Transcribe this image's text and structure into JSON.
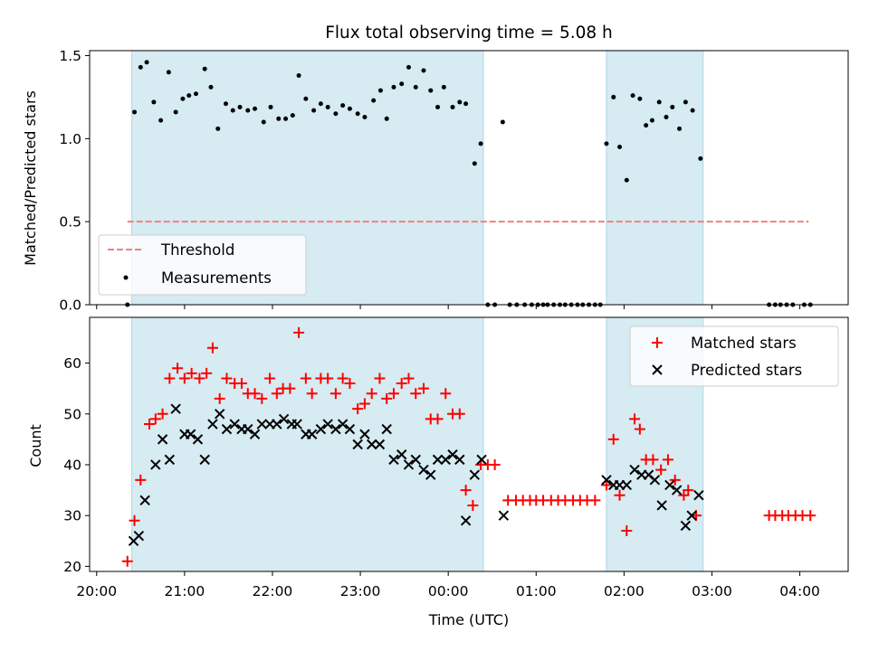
{
  "chart_data": [
    {
      "type": "scatter",
      "title": "Flux total observing time = 5.08 h",
      "ylabel": "Matched/Predicted stars",
      "xlabel": "",
      "xlim_hours": [
        19.92,
        28.55
      ],
      "ylim": [
        0,
        1.53
      ],
      "y_ticks": [
        0.0,
        0.5,
        1.0,
        1.5
      ],
      "x_ticks": [
        20,
        21,
        22,
        23,
        24,
        25,
        26,
        27,
        28
      ],
      "x_tick_labels": [],
      "shaded_intervals_hours": [
        [
          20.4,
          24.4
        ],
        [
          25.8,
          26.9
        ]
      ],
      "legend": {
        "placement": "lower-left",
        "entries": [
          "Threshold",
          "Measurements"
        ]
      },
      "threshold": {
        "name": "Threshold",
        "value": 0.5,
        "x_range_hours": [
          20.35,
          28.1
        ],
        "color": "#f08080"
      },
      "series": [
        {
          "name": "Measurements",
          "marker": "dot",
          "color": "#000000",
          "points": [
            [
              20.35,
              0.0
            ],
            [
              20.43,
              1.16
            ],
            [
              20.5,
              1.43
            ],
            [
              20.57,
              1.46
            ],
            [
              20.65,
              1.22
            ],
            [
              20.73,
              1.11
            ],
            [
              20.82,
              1.4
            ],
            [
              20.9,
              1.16
            ],
            [
              20.98,
              1.24
            ],
            [
              21.05,
              1.26
            ],
            [
              21.13,
              1.27
            ],
            [
              21.23,
              1.42
            ],
            [
              21.3,
              1.31
            ],
            [
              21.38,
              1.06
            ],
            [
              21.47,
              1.21
            ],
            [
              21.55,
              1.17
            ],
            [
              21.63,
              1.19
            ],
            [
              21.72,
              1.17
            ],
            [
              21.8,
              1.18
            ],
            [
              21.9,
              1.1
            ],
            [
              21.98,
              1.19
            ],
            [
              22.07,
              1.12
            ],
            [
              22.15,
              1.12
            ],
            [
              22.23,
              1.14
            ],
            [
              22.3,
              1.38
            ],
            [
              22.38,
              1.24
            ],
            [
              22.47,
              1.17
            ],
            [
              22.55,
              1.21
            ],
            [
              22.63,
              1.19
            ],
            [
              22.72,
              1.15
            ],
            [
              22.8,
              1.2
            ],
            [
              22.88,
              1.18
            ],
            [
              22.97,
              1.15
            ],
            [
              23.05,
              1.13
            ],
            [
              23.15,
              1.23
            ],
            [
              23.23,
              1.29
            ],
            [
              23.3,
              1.12
            ],
            [
              23.38,
              1.31
            ],
            [
              23.47,
              1.33
            ],
            [
              23.55,
              1.43
            ],
            [
              23.63,
              1.31
            ],
            [
              23.72,
              1.41
            ],
            [
              23.8,
              1.29
            ],
            [
              23.88,
              1.19
            ],
            [
              23.95,
              1.31
            ],
            [
              24.05,
              1.19
            ],
            [
              24.13,
              1.22
            ],
            [
              24.2,
              1.21
            ],
            [
              24.3,
              0.85
            ],
            [
              24.37,
              0.97
            ],
            [
              24.45,
              0.0
            ],
            [
              24.53,
              0.0
            ],
            [
              24.62,
              1.1
            ],
            [
              24.7,
              0.0
            ],
            [
              24.78,
              0.0
            ],
            [
              24.87,
              0.0
            ],
            [
              24.95,
              0.0
            ],
            [
              25.02,
              0.0
            ],
            [
              25.08,
              0.0
            ],
            [
              25.13,
              0.0
            ],
            [
              25.2,
              0.0
            ],
            [
              25.27,
              0.0
            ],
            [
              25.33,
              0.0
            ],
            [
              25.4,
              0.0
            ],
            [
              25.47,
              0.0
            ],
            [
              25.53,
              0.0
            ],
            [
              25.6,
              0.0
            ],
            [
              25.67,
              0.0
            ],
            [
              25.73,
              0.0
            ],
            [
              25.8,
              0.97
            ],
            [
              25.88,
              1.25
            ],
            [
              25.95,
              0.95
            ],
            [
              26.03,
              0.75
            ],
            [
              26.1,
              1.26
            ],
            [
              26.18,
              1.24
            ],
            [
              26.25,
              1.08
            ],
            [
              26.32,
              1.11
            ],
            [
              26.4,
              1.22
            ],
            [
              26.48,
              1.13
            ],
            [
              26.55,
              1.19
            ],
            [
              26.63,
              1.06
            ],
            [
              26.7,
              1.22
            ],
            [
              26.78,
              1.17
            ],
            [
              26.87,
              0.88
            ],
            [
              27.65,
              0.0
            ],
            [
              27.72,
              0.0
            ],
            [
              27.78,
              0.0
            ],
            [
              27.85,
              0.0
            ],
            [
              27.92,
              0.0
            ],
            [
              28.05,
              0.0
            ],
            [
              28.12,
              0.0
            ]
          ]
        }
      ]
    },
    {
      "type": "scatter",
      "title": "",
      "ylabel": "Count",
      "xlabel": "Time (UTC)",
      "xlim_hours": [
        19.92,
        28.55
      ],
      "ylim": [
        19,
        69
      ],
      "y_ticks": [
        20,
        30,
        40,
        50,
        60
      ],
      "x_ticks": [
        20,
        21,
        22,
        23,
        24,
        25,
        26,
        27,
        28
      ],
      "x_tick_labels": [
        "20:00",
        "21:00",
        "22:00",
        "23:00",
        "00:00",
        "01:00",
        "02:00",
        "03:00",
        "04:00"
      ],
      "shaded_intervals_hours": [
        [
          20.4,
          24.4
        ],
        [
          25.8,
          26.9
        ]
      ],
      "legend": {
        "placement": "upper-right",
        "entries": [
          "Matched stars",
          "Predicted stars"
        ]
      },
      "series": [
        {
          "name": "Matched stars",
          "marker": "plus",
          "color": "#ff0000",
          "points": [
            [
              20.35,
              21
            ],
            [
              20.43,
              29
            ],
            [
              20.5,
              37
            ],
            [
              20.6,
              48
            ],
            [
              20.67,
              49
            ],
            [
              20.75,
              50
            ],
            [
              20.83,
              57
            ],
            [
              20.92,
              59
            ],
            [
              21.0,
              57
            ],
            [
              21.08,
              58
            ],
            [
              21.17,
              57
            ],
            [
              21.25,
              58
            ],
            [
              21.32,
              63
            ],
            [
              21.4,
              53
            ],
            [
              21.48,
              57
            ],
            [
              21.57,
              56
            ],
            [
              21.65,
              56
            ],
            [
              21.72,
              54
            ],
            [
              21.8,
              54
            ],
            [
              21.88,
              53
            ],
            [
              21.97,
              57
            ],
            [
              22.05,
              54
            ],
            [
              22.12,
              55
            ],
            [
              22.2,
              55
            ],
            [
              22.3,
              66
            ],
            [
              22.38,
              57
            ],
            [
              22.45,
              54
            ],
            [
              22.55,
              57
            ],
            [
              22.63,
              57
            ],
            [
              22.72,
              54
            ],
            [
              22.8,
              57
            ],
            [
              22.88,
              56
            ],
            [
              22.97,
              51
            ],
            [
              23.05,
              52
            ],
            [
              23.13,
              54
            ],
            [
              23.22,
              57
            ],
            [
              23.3,
              53
            ],
            [
              23.38,
              54
            ],
            [
              23.47,
              56
            ],
            [
              23.55,
              57
            ],
            [
              23.63,
              54
            ],
            [
              23.72,
              55
            ],
            [
              23.8,
              49
            ],
            [
              23.88,
              49
            ],
            [
              23.97,
              54
            ],
            [
              24.05,
              50
            ],
            [
              24.13,
              50
            ],
            [
              24.2,
              35
            ],
            [
              24.28,
              32
            ],
            [
              24.37,
              40
            ],
            [
              24.45,
              40
            ],
            [
              24.53,
              40
            ],
            [
              24.68,
              33
            ],
            [
              24.77,
              33
            ],
            [
              24.85,
              33
            ],
            [
              24.93,
              33
            ],
            [
              25.0,
              33
            ],
            [
              25.08,
              33
            ],
            [
              25.17,
              33
            ],
            [
              25.25,
              33
            ],
            [
              25.33,
              33
            ],
            [
              25.42,
              33
            ],
            [
              25.5,
              33
            ],
            [
              25.58,
              33
            ],
            [
              25.67,
              33
            ],
            [
              25.8,
              36
            ],
            [
              25.88,
              45
            ],
            [
              25.95,
              34
            ],
            [
              26.03,
              27
            ],
            [
              26.12,
              49
            ],
            [
              26.18,
              47
            ],
            [
              26.25,
              41
            ],
            [
              26.33,
              41
            ],
            [
              26.42,
              39
            ],
            [
              26.5,
              41
            ],
            [
              26.58,
              37
            ],
            [
              26.68,
              34
            ],
            [
              26.73,
              35
            ],
            [
              26.82,
              30
            ],
            [
              27.65,
              30
            ],
            [
              27.72,
              30
            ],
            [
              27.8,
              30
            ],
            [
              27.87,
              30
            ],
            [
              27.95,
              30
            ],
            [
              28.03,
              30
            ],
            [
              28.12,
              30
            ]
          ]
        },
        {
          "name": "Predicted stars",
          "marker": "x",
          "color": "#000000",
          "points": [
            [
              20.42,
              25
            ],
            [
              20.48,
              26
            ],
            [
              20.55,
              33
            ],
            [
              20.67,
              40
            ],
            [
              20.75,
              45
            ],
            [
              20.83,
              41
            ],
            [
              20.9,
              51
            ],
            [
              21.0,
              46
            ],
            [
              21.07,
              46
            ],
            [
              21.15,
              45
            ],
            [
              21.23,
              41
            ],
            [
              21.32,
              48
            ],
            [
              21.4,
              50
            ],
            [
              21.48,
              47
            ],
            [
              21.57,
              48
            ],
            [
              21.65,
              47
            ],
            [
              21.72,
              47
            ],
            [
              21.8,
              46
            ],
            [
              21.88,
              48
            ],
            [
              21.97,
              48
            ],
            [
              22.05,
              48
            ],
            [
              22.13,
              49
            ],
            [
              22.22,
              48
            ],
            [
              22.28,
              48
            ],
            [
              22.38,
              46
            ],
            [
              22.45,
              46
            ],
            [
              22.55,
              47
            ],
            [
              22.63,
              48
            ],
            [
              22.72,
              47
            ],
            [
              22.8,
              48
            ],
            [
              22.88,
              47
            ],
            [
              22.97,
              44
            ],
            [
              23.05,
              46
            ],
            [
              23.13,
              44
            ],
            [
              23.22,
              44
            ],
            [
              23.3,
              47
            ],
            [
              23.38,
              41
            ],
            [
              23.47,
              42
            ],
            [
              23.55,
              40
            ],
            [
              23.63,
              41
            ],
            [
              23.72,
              39
            ],
            [
              23.8,
              38
            ],
            [
              23.88,
              41
            ],
            [
              23.97,
              41
            ],
            [
              24.05,
              42
            ],
            [
              24.13,
              41
            ],
            [
              24.2,
              29
            ],
            [
              24.3,
              38
            ],
            [
              24.38,
              41
            ],
            [
              24.63,
              30
            ],
            [
              25.8,
              37
            ],
            [
              25.88,
              36
            ],
            [
              25.95,
              36
            ],
            [
              26.03,
              36
            ],
            [
              26.12,
              39
            ],
            [
              26.2,
              38
            ],
            [
              26.28,
              38
            ],
            [
              26.35,
              37
            ],
            [
              26.43,
              32
            ],
            [
              26.52,
              36
            ],
            [
              26.6,
              35
            ],
            [
              26.7,
              28
            ],
            [
              26.77,
              30
            ],
            [
              26.85,
              34
            ]
          ]
        }
      ]
    }
  ]
}
